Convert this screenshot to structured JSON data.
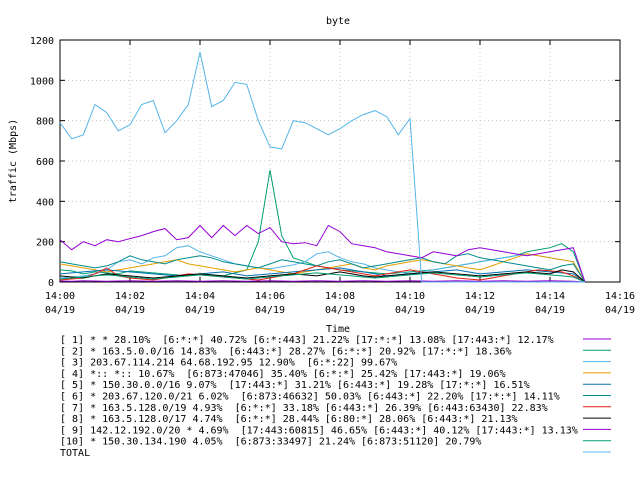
{
  "chart_data": {
    "type": "line",
    "title": "byte",
    "xlabel": "Time",
    "ylabel": "traffic (Mbps)",
    "ylim": [
      0,
      1200
    ],
    "yticks": [
      "0",
      "200",
      "400",
      "600",
      "800",
      "1000",
      "1200"
    ],
    "xlim": [
      "14:00",
      "14:16"
    ],
    "xticks": [
      {
        "time": "14:00",
        "date": "04/19"
      },
      {
        "time": "14:02",
        "date": "04/19"
      },
      {
        "time": "14:04",
        "date": "04/19"
      },
      {
        "time": "14:06",
        "date": "04/19"
      },
      {
        "time": "14:08",
        "date": "04/19"
      },
      {
        "time": "14:10",
        "date": "04/19"
      },
      {
        "time": "14:12",
        "date": "04/19"
      },
      {
        "time": "14:14",
        "date": "04/19"
      },
      {
        "time": "14:16",
        "date": "04/19"
      }
    ],
    "x": [
      "14:00:00",
      "14:00:20",
      "14:00:40",
      "14:01:00",
      "14:01:20",
      "14:01:40",
      "14:02:00",
      "14:02:20",
      "14:02:40",
      "14:03:00",
      "14:03:20",
      "14:03:40",
      "14:04:00",
      "14:04:20",
      "14:04:40",
      "14:05:00",
      "14:05:20",
      "14:05:40",
      "14:06:00",
      "14:06:20",
      "14:06:40",
      "14:07:00",
      "14:07:20",
      "14:07:40",
      "14:08:00",
      "14:08:20",
      "14:08:40",
      "14:09:00",
      "14:09:20",
      "14:09:40",
      "14:10:00",
      "14:10:20",
      "14:10:40",
      "14:11:00",
      "14:11:20",
      "14:11:40",
      "14:12:00",
      "14:12:20",
      "14:12:40",
      "14:13:00",
      "14:13:20",
      "14:13:40",
      "14:14:00",
      "14:14:20",
      "14:14:40",
      "14:15:00"
    ],
    "grid": true,
    "series": [
      {
        "name": "[ 1] * * 28.10%  [6:*:*] 40.72% [6:*:443] 21.22% [17:*:*] 13.08% [17:443:*] 12.17%",
        "color": "#9400d3",
        "values": [
          5,
          4,
          6,
          5,
          4,
          5,
          6,
          5,
          4,
          5,
          6,
          5,
          4,
          5,
          6,
          5,
          4,
          5,
          6,
          5,
          4,
          5,
          6,
          5,
          4,
          5,
          6,
          5,
          4,
          5,
          6,
          5,
          4,
          5,
          6,
          5,
          4,
          5,
          6,
          5,
          4,
          5,
          6,
          5,
          4,
          0
        ]
      },
      {
        "name": "[ 2] * 163.5.0.0/16 14.83%  [6:443:*] 28.27% [6:*:*] 20.92% [17:*:*] 18.36%",
        "color": "#009e73",
        "values": [
          60,
          55,
          40,
          50,
          45,
          40,
          55,
          50,
          45,
          40,
          35,
          30,
          40,
          35,
          30,
          45,
          60,
          200,
          555,
          230,
          120,
          100,
          80,
          70,
          60,
          55,
          50,
          45,
          40,
          45,
          50,
          55,
          60,
          70,
          80,
          90,
          100,
          110,
          120,
          130,
          150,
          160,
          170,
          190,
          150,
          0
        ]
      },
      {
        "name": "[ 3] 203.67.114.214 64.68.192.95 12.90%  [6:*:22] 99.67%",
        "color": "#56b4e9",
        "values": [
          20,
          25,
          30,
          40,
          60,
          100,
          110,
          90,
          120,
          130,
          170,
          180,
          150,
          130,
          110,
          90,
          80,
          70,
          65,
          75,
          85,
          100,
          140,
          150,
          120,
          100,
          90,
          70,
          60,
          50,
          40,
          50,
          60,
          70,
          80,
          90,
          100,
          110,
          120,
          130,
          140,
          130,
          120,
          110,
          100,
          0
        ]
      },
      {
        "name": "[ 4] *:: *:: 10.67%  [6:873:47046] 35.40% [6:*:*] 25.42% [17:443:*] 19.06%",
        "color": "#e69f00",
        "values": [
          90,
          80,
          70,
          60,
          50,
          60,
          70,
          80,
          90,
          100,
          110,
          90,
          80,
          70,
          60,
          50,
          60,
          70,
          60,
          50,
          40,
          50,
          60,
          70,
          80,
          90,
          70,
          60,
          80,
          90,
          100,
          110,
          100,
          90,
          80,
          70,
          60,
          80,
          100,
          120,
          140,
          130,
          120,
          110,
          100,
          0
        ]
      },
      {
        "name": "[ 5] * 150.30.0.0/16 9.07%  [17:443:*] 31.21% [6:443:*] 19.28% [17:*:*] 16.51%",
        "color": "#0072b2",
        "values": [
          40,
          45,
          50,
          55,
          60,
          55,
          50,
          45,
          40,
          35,
          30,
          35,
          40,
          45,
          50,
          40,
          30,
          35,
          40,
          45,
          50,
          55,
          60,
          65,
          70,
          60,
          50,
          40,
          30,
          35,
          40,
          45,
          50,
          55,
          60,
          50,
          40,
          45,
          50,
          55,
          60,
          55,
          50,
          45,
          40,
          0
        ]
      },
      {
        "name": "[ 6] * 203.67.120.0/21 6.02%  [6:873:46632] 50.03% [6:443:*] 22.20% [17:*:*] 14.11%",
        "color": "#008b8b",
        "values": [
          100,
          90,
          80,
          70,
          80,
          100,
          130,
          110,
          100,
          90,
          110,
          120,
          130,
          120,
          100,
          90,
          80,
          70,
          90,
          110,
          100,
          90,
          80,
          100,
          110,
          90,
          70,
          80,
          90,
          100,
          110,
          120,
          100,
          90,
          130,
          140,
          120,
          110,
          100,
          90,
          80,
          70,
          60,
          80,
          90,
          0
        ]
      },
      {
        "name": "[ 7] * 163.5.128.0/19 4.93%  [6:*:*] 33.18% [6:443:*] 26.39% [6:443:63430] 22.83%",
        "color": "#e51e10",
        "values": [
          10,
          15,
          20,
          40,
          70,
          30,
          20,
          15,
          10,
          20,
          30,
          40,
          35,
          30,
          25,
          20,
          15,
          10,
          20,
          30,
          40,
          60,
          80,
          70,
          60,
          50,
          40,
          30,
          40,
          50,
          60,
          50,
          40,
          30,
          20,
          15,
          10,
          20,
          30,
          40,
          50,
          60,
          55,
          50,
          30,
          0
        ]
      },
      {
        "name": "[ 8] * 163.5.128.0/17 4.74%  [6:*:*] 28.44% [6:80:*] 28.06% [6:443:*] 21.13%",
        "color": "#000000",
        "values": [
          30,
          25,
          20,
          30,
          40,
          35,
          30,
          25,
          20,
          25,
          30,
          35,
          40,
          35,
          30,
          25,
          20,
          25,
          30,
          35,
          40,
          35,
          30,
          40,
          50,
          40,
          30,
          25,
          30,
          35,
          40,
          45,
          50,
          45,
          40,
          35,
          30,
          35,
          40,
          45,
          50,
          45,
          40,
          60,
          50,
          0
        ]
      },
      {
        "name": "[ 9] 142.12.192.0/20 * 4.69%  [17:443:60815] 46.65% [6:443:*] 40.12% [17:443:*] 13.13%",
        "color": "#9400d3",
        "values": [
          210,
          160,
          200,
          180,
          210,
          200,
          215,
          230,
          250,
          265,
          210,
          220,
          280,
          220,
          280,
          230,
          280,
          240,
          270,
          200,
          190,
          195,
          180,
          280,
          250,
          190,
          180,
          170,
          150,
          140,
          130,
          120,
          150,
          140,
          130,
          160,
          170,
          160,
          150,
          140,
          130,
          140,
          150,
          160,
          170,
          0
        ]
      },
      {
        "name": "[10] * 150.30.134.190 4.05%  [6:873:33497] 21.24% [6:873:51120] 20.79%",
        "color": "#009e73",
        "values": [
          15,
          20,
          25,
          30,
          35,
          30,
          25,
          20,
          15,
          20,
          25,
          30,
          35,
          30,
          25,
          20,
          15,
          20,
          25,
          30,
          35,
          40,
          45,
          40,
          35,
          30,
          25,
          20,
          25,
          30,
          35,
          40,
          45,
          40,
          35,
          30,
          25,
          30,
          35,
          40,
          45,
          40,
          35,
          30,
          25,
          0
        ]
      },
      {
        "name": "TOTAL",
        "color": "#56b4e9",
        "values": [
          790,
          710,
          730,
          880,
          840,
          750,
          780,
          880,
          900,
          740,
          800,
          880,
          1140,
          870,
          900,
          990,
          980,
          800,
          670,
          660,
          800,
          790,
          760,
          730,
          760,
          800,
          830,
          850,
          820,
          730,
          810,
          0,
          0,
          0,
          0,
          0,
          0,
          0,
          0,
          0,
          0,
          0,
          0,
          0,
          0,
          0
        ]
      }
    ]
  }
}
